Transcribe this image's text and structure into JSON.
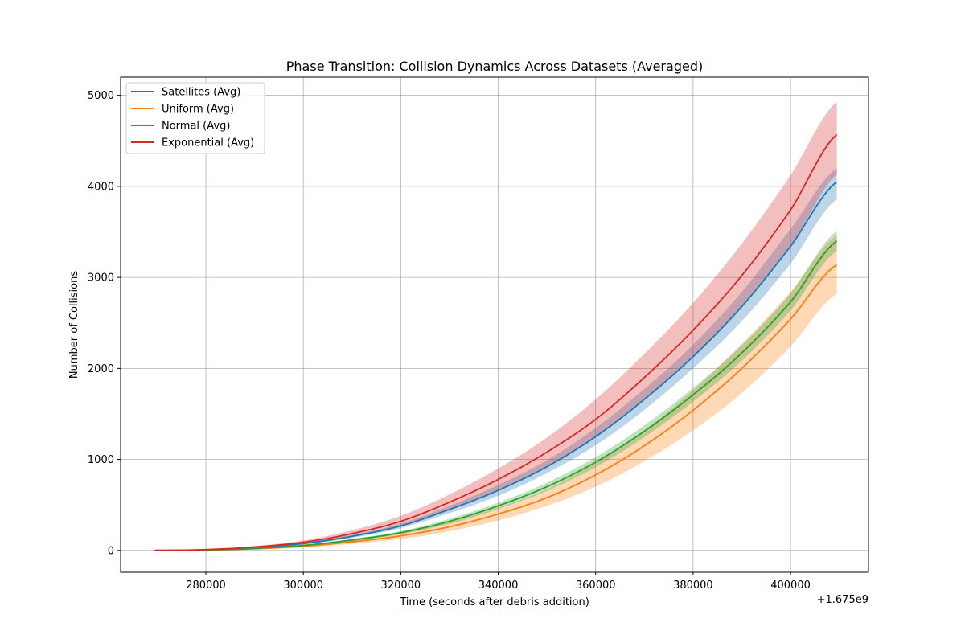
{
  "chart_data": {
    "type": "line",
    "title": "Phase Transition: Collision Dynamics Across Datasets (Averaged)",
    "xlabel": "Time (seconds after debris addition)",
    "ylabel": "Number of Collisions",
    "x_offset_label": "+1.675e9",
    "xlim": [
      262500,
      416000
    ],
    "ylim": [
      -240,
      5200
    ],
    "xticks": [
      280000,
      300000,
      320000,
      340000,
      360000,
      380000,
      400000
    ],
    "xtick_labels": [
      "280000",
      "300000",
      "320000",
      "340000",
      "360000",
      "380000",
      "400000"
    ],
    "yticks": [
      0,
      1000,
      2000,
      3000,
      4000,
      5000
    ],
    "ytick_labels": [
      "0",
      "1000",
      "2000",
      "3000",
      "4000",
      "5000"
    ],
    "grid": true,
    "legend_position": "upper-left",
    "x": [
      269500,
      280000,
      290000,
      300000,
      310000,
      320000,
      330000,
      340000,
      350000,
      360000,
      370000,
      380000,
      390000,
      400000,
      409500
    ],
    "series": [
      {
        "name": "Satellites (Avg)",
        "color": "#1f77b4",
        "values": [
          0,
          8,
          32,
          75,
          155,
          270,
          450,
          660,
          920,
          1250,
          1660,
          2130,
          2680,
          3340,
          4050
        ],
        "band_low": [
          0,
          6,
          27,
          66,
          138,
          245,
          410,
          600,
          850,
          1155,
          1545,
          2000,
          2520,
          3150,
          3860
        ],
        "band_high": [
          0,
          10,
          37,
          84,
          172,
          295,
          490,
          720,
          990,
          1345,
          1775,
          2260,
          2840,
          3530,
          4200
        ]
      },
      {
        "name": "Uniform (Avg)",
        "color": "#ff7f0e",
        "values": [
          0,
          5,
          18,
          45,
          95,
          160,
          260,
          400,
          580,
          830,
          1150,
          1540,
          2000,
          2540,
          3140
        ],
        "band_low": [
          0,
          3,
          12,
          33,
          72,
          125,
          210,
          330,
          490,
          700,
          980,
          1320,
          1730,
          2240,
          2820
        ],
        "band_high": [
          0,
          7,
          24,
          57,
          118,
          195,
          310,
          470,
          670,
          960,
          1320,
          1760,
          2270,
          2840,
          3460
        ]
      },
      {
        "name": "Normal (Avg)",
        "color": "#2ca02c",
        "values": [
          0,
          6,
          22,
          55,
          115,
          195,
          320,
          490,
          700,
          970,
          1310,
          1710,
          2170,
          2730,
          3400
        ],
        "band_low": [
          0,
          5,
          18,
          47,
          102,
          178,
          292,
          455,
          655,
          915,
          1245,
          1635,
          2085,
          2635,
          3290
        ],
        "band_high": [
          0,
          7,
          26,
          63,
          128,
          212,
          348,
          525,
          745,
          1025,
          1375,
          1785,
          2255,
          2825,
          3510
        ]
      },
      {
        "name": "Exponential (Avg)",
        "color": "#d62728",
        "values": [
          0,
          9,
          38,
          90,
          185,
          320,
          530,
          780,
          1080,
          1440,
          1900,
          2420,
          3020,
          3740,
          4570
        ],
        "band_low": [
          0,
          6,
          27,
          70,
          148,
          260,
          445,
          660,
          920,
          1250,
          1660,
          2130,
          2680,
          3340,
          4130
        ],
        "band_high": [
          0,
          12,
          49,
          110,
          222,
          380,
          615,
          900,
          1240,
          1660,
          2160,
          2720,
          3370,
          4120,
          4930
        ]
      }
    ]
  }
}
